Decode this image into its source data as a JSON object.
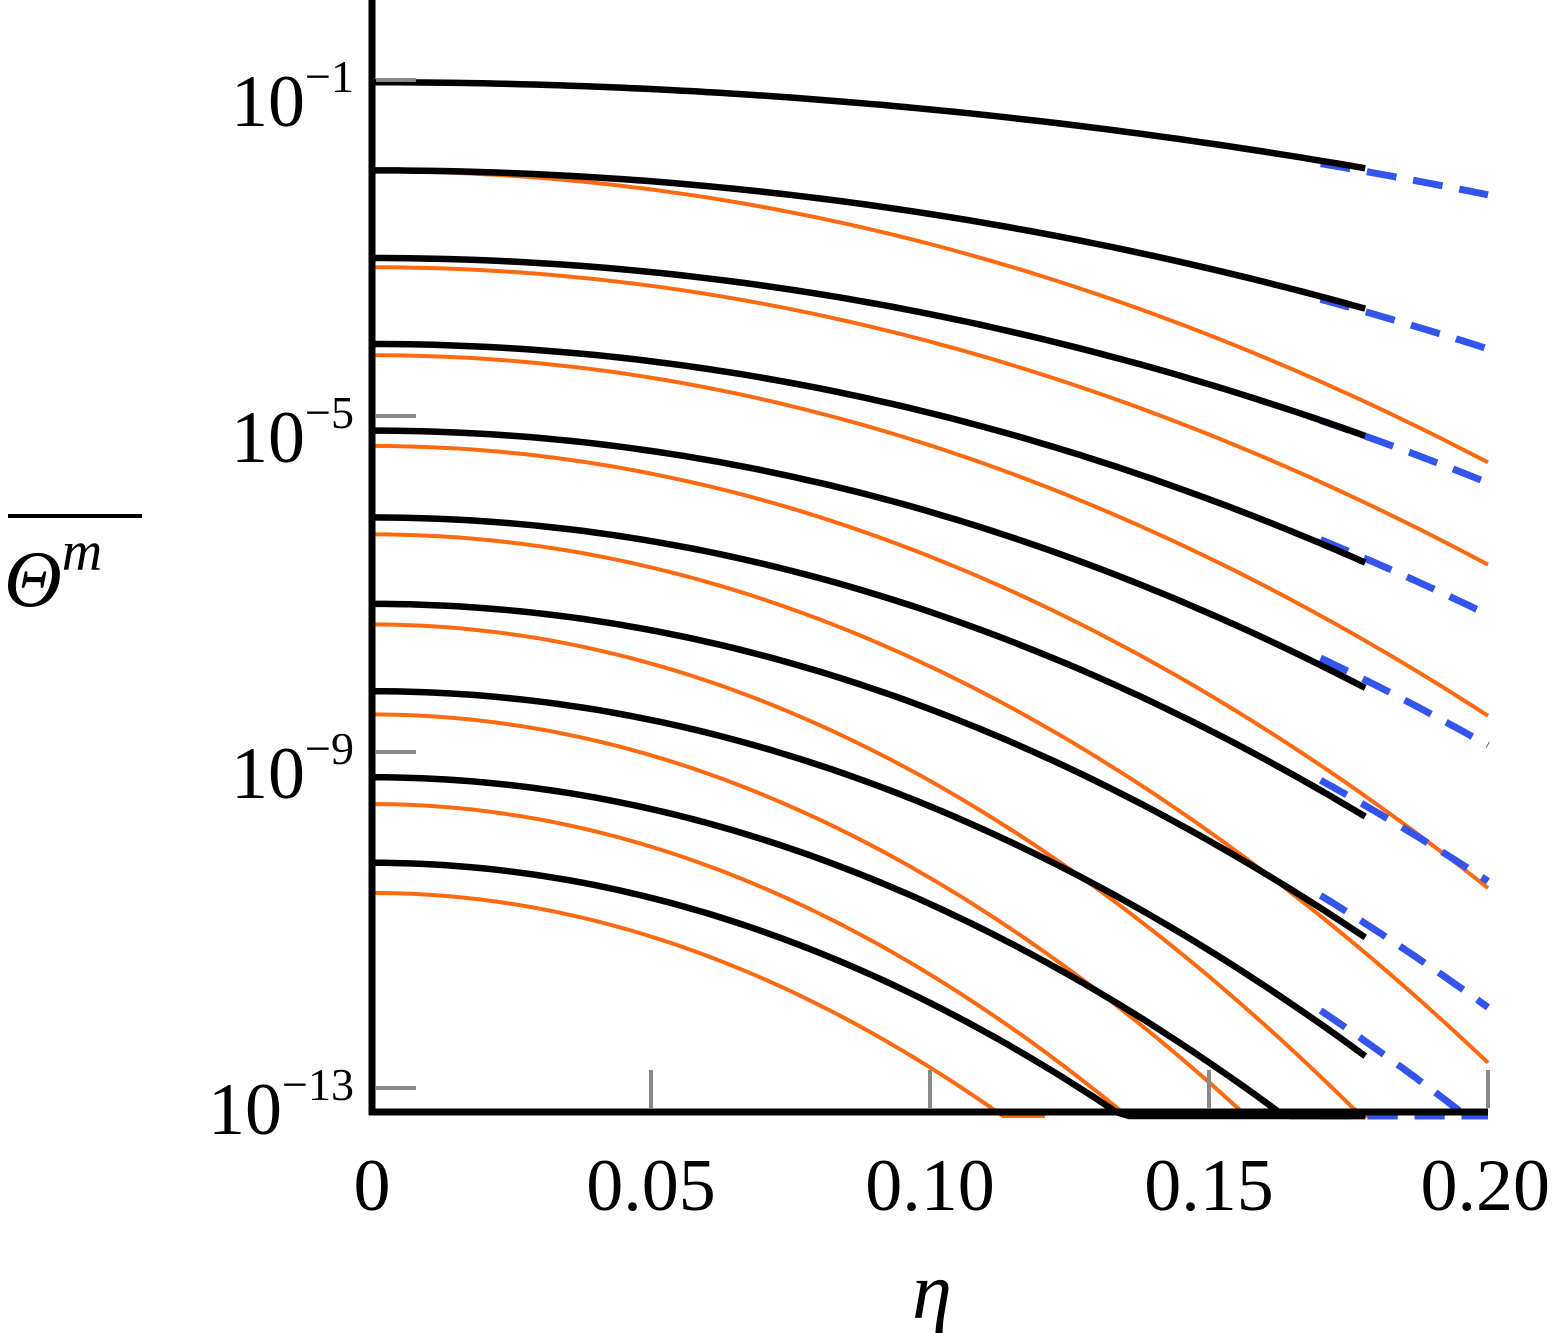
{
  "chart_data": {
    "type": "line",
    "xlabel": "η",
    "ylabel": "Θ",
    "ylabel_superscript": "m",
    "ylabel_overline": true,
    "xlim": [
      0,
      0.2
    ],
    "ylim": [
      1e-13,
      1
    ],
    "yscale": "log",
    "grid": false,
    "legend": "none",
    "x_ticks": [
      {
        "value": 0,
        "label": "0"
      },
      {
        "value": 0.05,
        "label": "0.05"
      },
      {
        "value": 0.1,
        "label": "0.10"
      },
      {
        "value": 0.15,
        "label": "0.15"
      },
      {
        "value": 0.2,
        "label": "0.20"
      }
    ],
    "y_ticks": [
      {
        "value": 0.1,
        "base": "10",
        "exp": "−1"
      },
      {
        "value": 1e-05,
        "base": "10",
        "exp": "−5"
      },
      {
        "value": 1e-09,
        "base": "10",
        "exp": "−9"
      },
      {
        "value": 1e-13,
        "base": "10",
        "exp": "−13"
      }
    ],
    "curve_families": [
      {
        "style": "solid-black",
        "color": "#000000",
        "x_end": 0.178,
        "curves": [
          {
            "y0": 0.094,
            "y_end": 0.0089
          },
          {
            "y0": 0.0084,
            "y_end": 0.00019
          },
          {
            "y0": 0.00076,
            "y_end": 5.8e-06
          },
          {
            "y0": 7.2e-05,
            "y_end": 1.8e-07
          },
          {
            "y0": 6.7e-06,
            "y_end": 5.8e-09
          },
          {
            "y0": 6.2e-07,
            "y_end": 1.7e-10
          },
          {
            "y0": 5.8e-08,
            "y_end": 6.2e-12
          },
          {
            "y0": 5.3e-09,
            "y_end": 2.4e-13
          },
          {
            "y0": 5e-10,
            "y_end": 8.3e-15
          },
          {
            "y0": 4.8e-11,
            "y_end": 2.5e-16
          }
        ]
      },
      {
        "style": "dashed-blue",
        "color": "#3355ee",
        "x_start": 0.17,
        "x_end": 0.2,
        "curves": [
          {
            "y0": 0.094,
            "y_end": 0.0043
          },
          {
            "y0": 0.0084,
            "y_end": 6.3e-05
          },
          {
            "y0": 0.00076,
            "y_end": 1.6e-06
          },
          {
            "y0": 7.2e-05,
            "y_end": 4.3e-08
          },
          {
            "y0": 6.7e-06,
            "y_end": 1.2e-09
          },
          {
            "y0": 6.2e-07,
            "y_end": 2.9e-11
          },
          {
            "y0": 5.8e-08,
            "y_end": 9.1e-13
          },
          {
            "y0": 5.3e-09,
            "y_end": 2.9e-14
          },
          {
            "y0": 5e-10,
            "y_end": 9.3e-16
          },
          {
            "y0": 4.8e-11,
            "y_end": 3e-17
          }
        ]
      },
      {
        "style": "solid-orange",
        "color": "#ff6a10",
        "curves": [
          {
            "y0": 0.0082,
            "x_end": 0.2,
            "y_end": 2.8e-06
          },
          {
            "y0": 0.00059,
            "x_end": 0.2,
            "y_end": 1.7e-07
          },
          {
            "y0": 5.3e-05,
            "x_end": 0.2,
            "y_end": 2.7e-09
          },
          {
            "y0": 4.4e-06,
            "x_end": 0.2,
            "y_end": 2.4e-11
          },
          {
            "y0": 3.9e-07,
            "x_end": 0.2,
            "y_end": 2e-13
          },
          {
            "y0": 3.3e-08,
            "x_end": 0.1827,
            "y_end": 2e-14
          },
          {
            "y0": 2.8e-09,
            "x_end": 0.1626,
            "y_end": 2e-14
          },
          {
            "y0": 2.4e-10,
            "x_end": 0.1418,
            "y_end": 2e-14
          },
          {
            "y0": 2.1e-11,
            "x_end": 0.1206,
            "y_end": 2e-14
          }
        ]
      }
    ]
  }
}
